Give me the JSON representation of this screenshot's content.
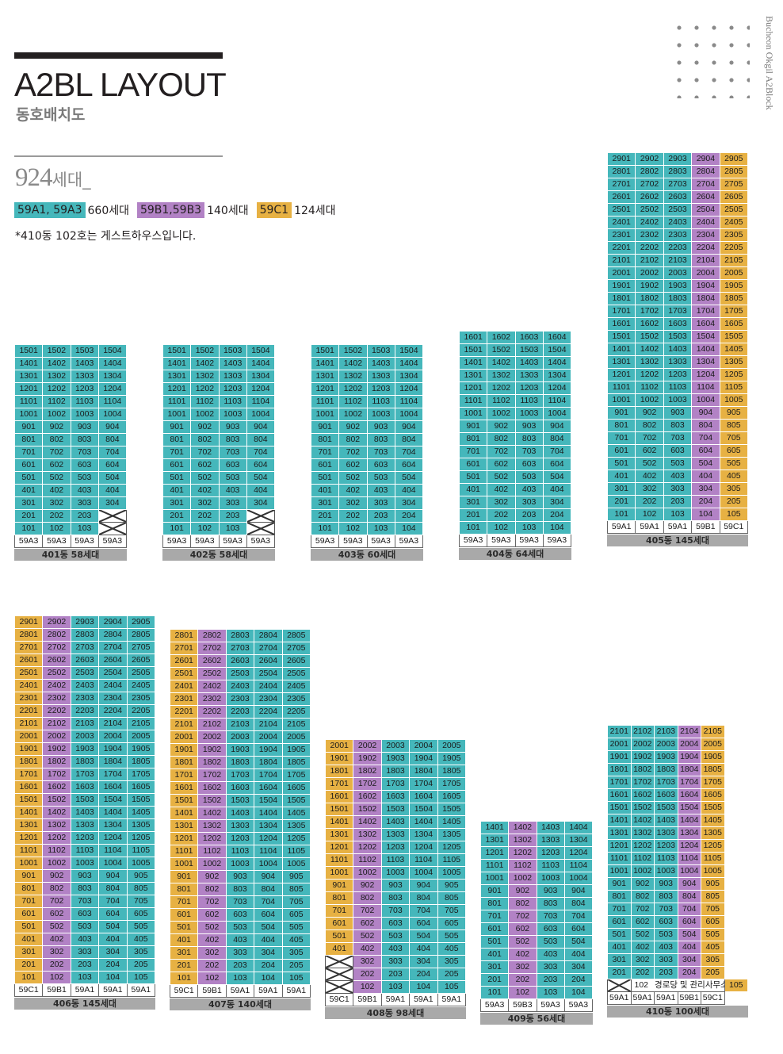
{
  "header": {
    "title": "A2BL LAYOUT",
    "subtitle": "동호배치도",
    "side_text": "Bucheon Okgil A2Block",
    "total_number": "924",
    "total_unit": "세대_",
    "legend": [
      {
        "label": "59A1, 59A3",
        "count": "660세대",
        "color": "#45b7bb"
      },
      {
        "label": "59B1,59B3",
        "count": "140세대",
        "color": "#b282c5"
      },
      {
        "label": "59C1",
        "count": "124세대",
        "color": "#e7b143"
      }
    ],
    "note": "*410동 102호는 게스트하우스입니다."
  },
  "colors": {
    "A": "#45b7bb",
    "B": "#b282c5",
    "C": "#e7b143"
  },
  "buildings": [
    {
      "id": "401",
      "label": "401동 58세대",
      "floors": 15,
      "cols": 4,
      "types": [
        "59A3",
        "59A3",
        "59A3",
        "59A3"
      ],
      "colors": [
        "A",
        "A",
        "A",
        "A"
      ],
      "empty": [
        "104",
        "204"
      ]
    },
    {
      "id": "402",
      "label": "402동 58세대",
      "floors": 15,
      "cols": 4,
      "types": [
        "59A3",
        "59A3",
        "59A3",
        "59A3"
      ],
      "colors": [
        "A",
        "A",
        "A",
        "A"
      ],
      "empty": [
        "104",
        "204"
      ]
    },
    {
      "id": "403",
      "label": "403동 60세대",
      "floors": 15,
      "cols": 4,
      "types": [
        "59A3",
        "59A3",
        "59A3",
        "59A3"
      ],
      "colors": [
        "A",
        "A",
        "A",
        "A"
      ]
    },
    {
      "id": "404",
      "label": "404동 64세대",
      "floors": 16,
      "cols": 4,
      "types": [
        "59A3",
        "59A3",
        "59A3",
        "59A3"
      ],
      "colors": [
        "A",
        "A",
        "A",
        "A"
      ]
    },
    {
      "id": "405",
      "label": "405동 145세대",
      "floors": 29,
      "cols": 5,
      "types": [
        "59A1",
        "59A1",
        "59A1",
        "59B1",
        "59C1"
      ],
      "colors": [
        "A",
        "A",
        "A",
        "B",
        "C"
      ]
    },
    {
      "id": "406",
      "label": "406동 145세대",
      "floors": 29,
      "cols": 5,
      "types": [
        "59C1",
        "59B1",
        "59A1",
        "59A1",
        "59A1"
      ],
      "colors": [
        "C",
        "B",
        "A",
        "A",
        "A"
      ]
    },
    {
      "id": "407",
      "label": "407동 140세대",
      "floors": 28,
      "cols": 5,
      "types": [
        "59C1",
        "59B1",
        "59A1",
        "59A1",
        "59A1"
      ],
      "colors": [
        "C",
        "B",
        "A",
        "A",
        "A"
      ]
    },
    {
      "id": "408",
      "label": "408동 98세대",
      "floors": 20,
      "cols": 5,
      "types": [
        "59C1",
        "59B1",
        "59A1",
        "59A1",
        "59A1"
      ],
      "colors": [
        "C",
        "B",
        "A",
        "A",
        "A"
      ],
      "empty": [
        "101",
        "201",
        "301"
      ]
    },
    {
      "id": "409",
      "label": "409동 56세대",
      "floors": 14,
      "cols": 4,
      "types": [
        "59A3",
        "59B3",
        "59A3",
        "59A3"
      ],
      "colors": [
        "A",
        "B",
        "A",
        "A"
      ]
    },
    {
      "id": "410",
      "label": "410동 100세대",
      "floors": 21,
      "cols": 5,
      "types": [
        "59A1",
        "59A1",
        "59A1",
        "59B1",
        "59C1"
      ],
      "colors": [
        "A",
        "A",
        "A",
        "B",
        "C"
      ],
      "empty": [
        "101"
      ],
      "guest": {
        "unit": "102",
        "text": "경로당 및 관리사무소"
      }
    }
  ]
}
